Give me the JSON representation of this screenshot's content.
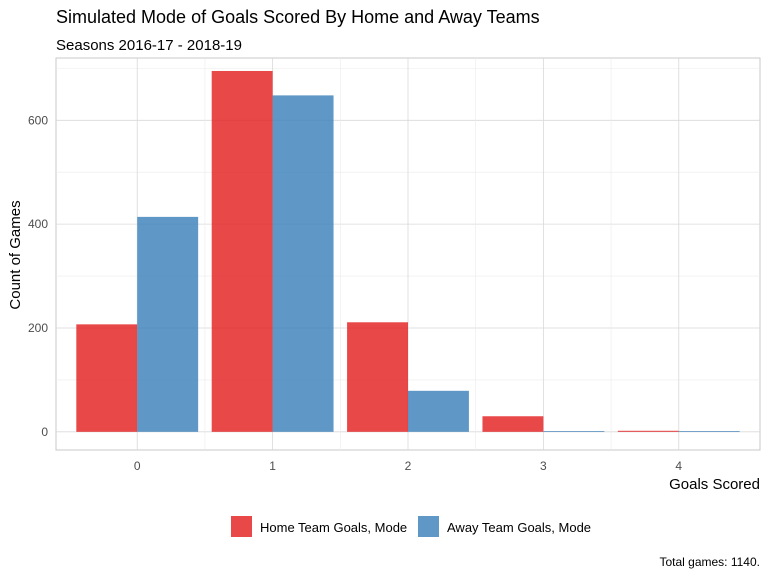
{
  "chart_data": {
    "type": "bar",
    "title": "Simulated Mode of Goals Scored By Home and Away Teams",
    "subtitle": "Seasons 2016-17 - 2018-19",
    "xlabel": "Goals Scored",
    "ylabel": "Count of Games",
    "caption": "Total games: 1140.",
    "categories": [
      "0",
      "1",
      "2",
      "3",
      "4"
    ],
    "yticks": [
      "0",
      "200",
      "400",
      "600"
    ],
    "ylim": [
      -35,
      720
    ],
    "grid": true,
    "legend_position": "bottom",
    "series": [
      {
        "name": "Home Team Goals, Mode",
        "color": "#E41A1C",
        "values": [
          207,
          695,
          211,
          30,
          2
        ]
      },
      {
        "name": "Away Team Goals, Mode",
        "color": "#377EB8",
        "values": [
          414,
          648,
          79,
          1,
          0
        ]
      }
    ]
  }
}
